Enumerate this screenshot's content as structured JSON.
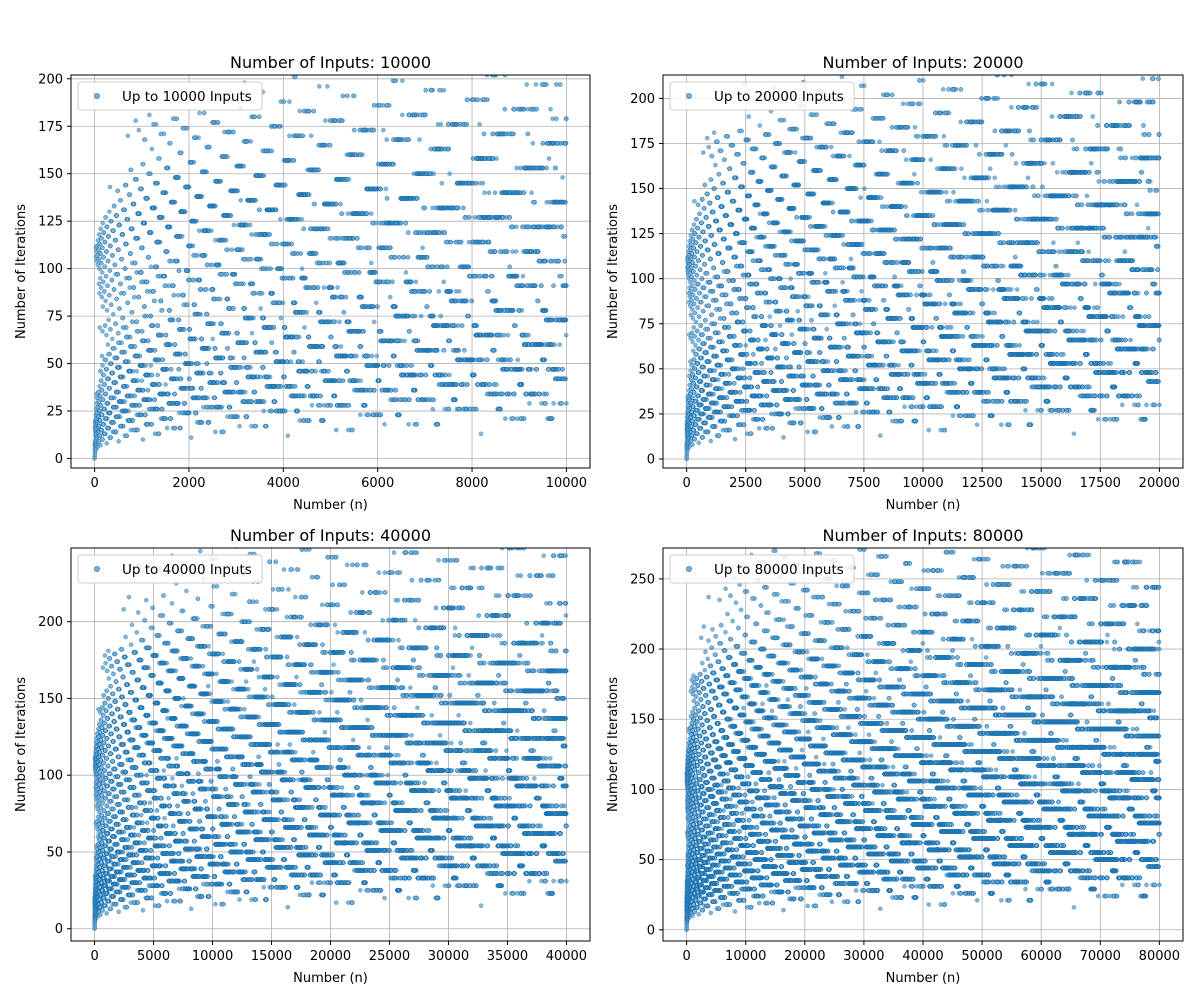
{
  "chart_data": [
    {
      "type": "scatter",
      "title": "Number of Inputs: 10000",
      "xlabel": "Number (n)",
      "ylabel": "Number of Iterations",
      "xlim": [
        -500,
        10500
      ],
      "ylim": [
        -5,
        202
      ],
      "xticks": [
        0,
        2000,
        4000,
        6000,
        8000,
        10000
      ],
      "yticks": [
        0,
        25,
        50,
        75,
        100,
        125,
        150,
        175,
        200
      ],
      "xtick_labels": [
        "0",
        "2000",
        "4000",
        "6000",
        "8000",
        "10000"
      ],
      "ytick_labels": [
        "0",
        "25",
        "50",
        "75",
        "100",
        "125",
        "150",
        "175",
        "200"
      ],
      "grid": true,
      "legend": {
        "label": "Up to 10000 Inputs",
        "location": "upper-left"
      },
      "series": [
        {
          "name": "Up to 10000 Inputs",
          "n_max": 10000,
          "color": "#1f77b4",
          "description": "Collatz stopping time (iterations) for each n from 1 to 10000"
        }
      ]
    },
    {
      "type": "scatter",
      "title": "Number of Inputs: 20000",
      "xlabel": "Number (n)",
      "ylabel": "Number of Iterations",
      "xlim": [
        -1000,
        21000
      ],
      "ylim": [
        -5,
        213
      ],
      "xticks": [
        0,
        2500,
        5000,
        7500,
        10000,
        12500,
        15000,
        17500,
        20000
      ],
      "yticks": [
        0,
        25,
        50,
        75,
        100,
        125,
        150,
        175,
        200
      ],
      "xtick_labels": [
        "0",
        "2500",
        "5000",
        "7500",
        "10000",
        "12500",
        "15000",
        "17500",
        "20000"
      ],
      "ytick_labels": [
        "0",
        "25",
        "50",
        "75",
        "100",
        "125",
        "150",
        "175",
        "200"
      ],
      "grid": true,
      "legend": {
        "label": "Up to 20000 Inputs",
        "location": "upper-left"
      },
      "series": [
        {
          "name": "Up to 20000 Inputs",
          "n_max": 20000,
          "color": "#1f77b4",
          "description": "Collatz stopping time (iterations) for each n from 1 to 20000"
        }
      ]
    },
    {
      "type": "scatter",
      "title": "Number of Inputs: 40000",
      "xlabel": "Number (n)",
      "ylabel": "Number of Iterations",
      "xlim": [
        -2000,
        42000
      ],
      "ylim": [
        -8,
        248
      ],
      "xticks": [
        0,
        5000,
        10000,
        15000,
        20000,
        25000,
        30000,
        35000,
        40000
      ],
      "yticks": [
        0,
        50,
        100,
        150,
        200
      ],
      "xtick_labels": [
        "0",
        "5000",
        "10000",
        "15000",
        "20000",
        "25000",
        "30000",
        "35000",
        "40000"
      ],
      "ytick_labels": [
        "0",
        "50",
        "100",
        "150",
        "200"
      ],
      "grid": true,
      "legend": {
        "label": "Up to 40000 Inputs",
        "location": "upper-left"
      },
      "series": [
        {
          "name": "Up to 40000 Inputs",
          "n_max": 40000,
          "color": "#1f77b4",
          "description": "Collatz stopping time (iterations) for each n from 1 to 40000"
        }
      ]
    },
    {
      "type": "scatter",
      "title": "Number of Inputs: 80000",
      "xlabel": "Number (n)",
      "ylabel": "Number of Iterations",
      "xlim": [
        -4000,
        84000
      ],
      "ylim": [
        -8,
        272
      ],
      "xticks": [
        0,
        10000,
        20000,
        30000,
        40000,
        50000,
        60000,
        70000,
        80000
      ],
      "yticks": [
        0,
        50,
        100,
        150,
        200,
        250
      ],
      "xtick_labels": [
        "0",
        "10000",
        "20000",
        "30000",
        "40000",
        "50000",
        "60000",
        "70000",
        "80000"
      ],
      "ytick_labels": [
        "0",
        "50",
        "100",
        "150",
        "200",
        "250"
      ],
      "grid": true,
      "legend": {
        "label": "Up to 80000 Inputs",
        "location": "upper-left"
      },
      "series": [
        {
          "name": "Up to 80000 Inputs",
          "n_max": 80000,
          "color": "#1f77b4",
          "description": "Collatz stopping time (iterations) for each n from 1 to 80000"
        }
      ]
    }
  ],
  "colors": {
    "marker": "#1f77b4",
    "grid": "#b0b0b0",
    "axis": "#000000",
    "legend_border": "#cccccc"
  }
}
